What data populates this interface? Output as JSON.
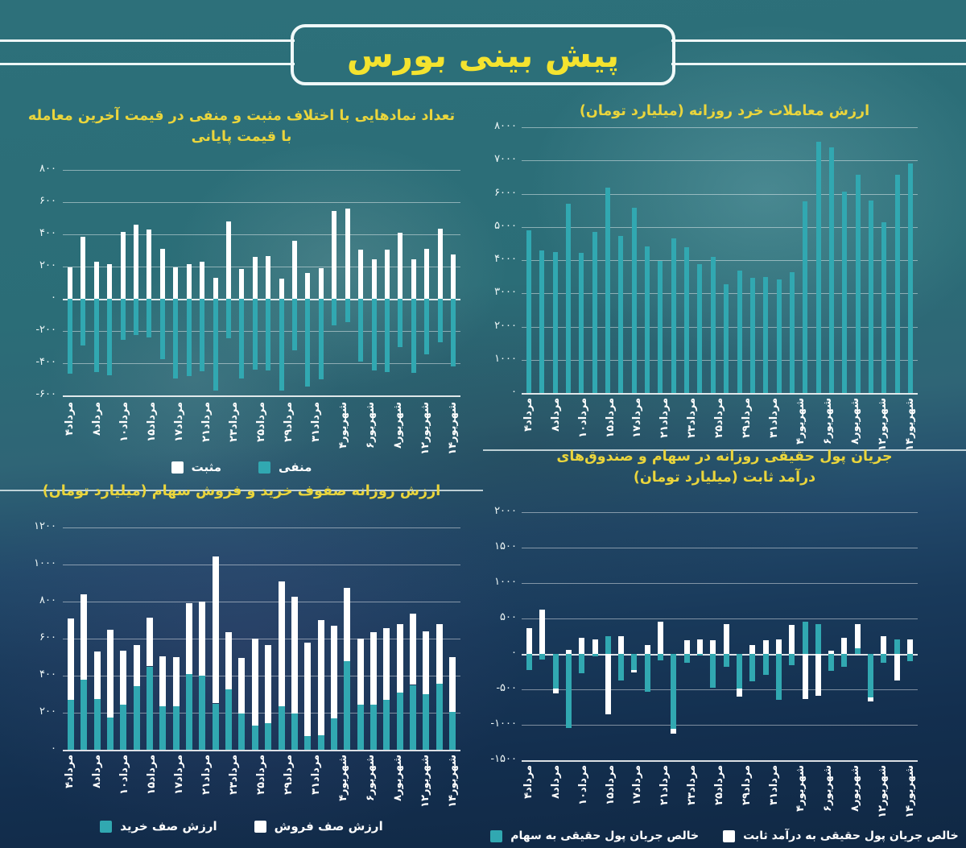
{
  "main_title": "پیش بینی بورس",
  "colors": {
    "teal": "#31a8b1",
    "white": "#ffffff",
    "title_yellow": "#ead53c",
    "main_title_yellow": "#f4e32f"
  },
  "chart_data": [
    {
      "id": "symbol-count-diff",
      "type": "bar",
      "title": "تعداد نمادهایی با اختلاف مثبت و منفی در قیمت آخرین معامله\nبا قیمت پایانی",
      "ylim": [
        -600,
        800
      ],
      "yticks": [
        "۸۰۰",
        "۶۰۰",
        "۴۰۰",
        "۲۰۰",
        "۰",
        "-۲۰۰",
        "-۴۰۰",
        "-۶۰۰"
      ],
      "barw": 6,
      "series": [
        {
          "name": "مثبت",
          "color": "#ffffff",
          "values": [
            195,
            385,
            230,
            215,
            415,
            460,
            430,
            310,
            195,
            215,
            230,
            130,
            480,
            185,
            260,
            265,
            125,
            360,
            160,
            190,
            545,
            560,
            305,
            245,
            305,
            410,
            245,
            310,
            435,
            275
          ]
        },
        {
          "name": "منفی",
          "color": "#31a8b1",
          "values": [
            -465,
            -290,
            -455,
            -475,
            -255,
            -225,
            -240,
            -375,
            -495,
            -480,
            -450,
            -570,
            -245,
            -495,
            -440,
            -445,
            -570,
            -320,
            -545,
            -500,
            -165,
            -145,
            -390,
            -445,
            -455,
            -300,
            -460,
            -345,
            -270,
            -420
          ]
        }
      ],
      "legend": [
        {
          "label": "مثبت",
          "color": "#ffffff"
        },
        {
          "label": "منفی",
          "color": "#31a8b1"
        }
      ],
      "xlabels": [
        "مرداد۴",
        "مرداد۸",
        "مرداد۱۰",
        "مرداد۱۵",
        "مرداد۱۷",
        "مرداد۲۱",
        "مرداد۲۳",
        "مرداد۲۵",
        "مرداد۲۹",
        "مرداد۳۱",
        "شهریور۴",
        "شهریور۶",
        "شهریور۸",
        "شهریور۱۲",
        "شهریور۱۴"
      ]
    },
    {
      "id": "retail-trade-value",
      "type": "bar",
      "title": "ارزش معاملات خرد روزانه (میلیارد تومان)",
      "ylim": [
        0,
        8000
      ],
      "yticks": [
        "۸۰۰۰",
        "۷۰۰۰",
        "۶۰۰۰",
        "۵۰۰۰",
        "۴۰۰۰",
        "۳۰۰۰",
        "۲۰۰۰",
        "۱۰۰۰",
        "۰"
      ],
      "barw": 6,
      "series": [
        {
          "name": "ارزش معاملات خرد روزانه",
          "color": "#31a8b1",
          "values": [
            4900,
            4290,
            4250,
            5690,
            4210,
            4860,
            6170,
            4730,
            5580,
            4410,
            3970,
            4650,
            4400,
            3890,
            4100,
            3280,
            3680,
            3460,
            3500,
            3420,
            3640,
            5760,
            7560,
            7400,
            6060,
            6580,
            5800,
            5140,
            6560,
            6900
          ]
        }
      ],
      "legend": [],
      "xlabels": [
        "مرداد۴",
        "مرداد۸",
        "مرداد۱۰",
        "مرداد۱۵",
        "مرداد۱۷",
        "مرداد۲۱",
        "مرداد۲۳",
        "مرداد۲۵",
        "مرداد۲۹",
        "مرداد۳۱",
        "شهریور۴",
        "شهریور۶",
        "شهریور۸",
        "شهریور۱۲",
        "شهریور۱۴"
      ]
    },
    {
      "id": "order-queues-value",
      "type": "bar-stacked",
      "title": "ارزش روزانه صفوف خرید و فروش سهام (میلیارد تومان)",
      "ylim": [
        0,
        1200
      ],
      "yticks": [
        "۱۲۰۰",
        "۱۰۰۰",
        "۸۰۰",
        "۶۰۰",
        "۴۰۰",
        "۲۰۰",
        "۰"
      ],
      "barw": 8,
      "series": [
        {
          "name": "ارزش صف خرید",
          "color": "#31a8b1",
          "values": [
            270,
            380,
            275,
            175,
            245,
            345,
            450,
            235,
            235,
            410,
            400,
            250,
            325,
            195,
            130,
            145,
            235,
            195,
            75,
            80,
            170,
            480,
            245,
            245,
            270,
            310,
            350,
            300,
            355,
            205
          ]
        },
        {
          "name": "ارزش صف فروش",
          "color": "#ffffff",
          "values": [
            440,
            460,
            255,
            475,
            290,
            220,
            265,
            270,
            265,
            380,
            400,
            795,
            310,
            300,
            470,
            420,
            675,
            630,
            505,
            620,
            500,
            395,
            355,
            390,
            385,
            370,
            385,
            340,
            325,
            295
          ]
        }
      ],
      "legend": [
        {
          "label": "ارزش صف خرید",
          "color": "#31a8b1"
        },
        {
          "label": "ارزش صف فروش",
          "color": "#ffffff"
        }
      ],
      "xlabels": [
        "مرداد۴",
        "مرداد۸",
        "مرداد۱۰",
        "مرداد۱۵",
        "مرداد۱۷",
        "مرداد۲۱",
        "مرداد۲۳",
        "مرداد۲۵",
        "مرداد۲۹",
        "مرداد۳۱",
        "شهریور۴",
        "شهریور۶",
        "شهریور۸",
        "شهریور۱۲",
        "شهریور۱۴"
      ]
    },
    {
      "id": "real-money-flow",
      "type": "bar",
      "title": "جریان پول حقیقی روزانه در سهام و صندوق‌های\nدرآمد ثابت (میلیارد تومان)",
      "ylim": [
        -1500,
        2000
      ],
      "yticks": [
        "۲۰۰۰",
        "۱۵۰۰",
        "۱۰۰۰",
        "۵۰۰",
        "۰",
        "-۵۰۰",
        "-۱۰۰۰",
        "-۱۵۰۰"
      ],
      "barw": 7,
      "series": [
        {
          "name": "خالص جریان پول حقیقی به سهام",
          "color": "#31a8b1",
          "values": [
            -225,
            -80,
            -490,
            -1050,
            -270,
            -30,
            245,
            -380,
            -230,
            -530,
            -90,
            -1060,
            -130,
            -25,
            -480,
            -180,
            -490,
            -390,
            -290,
            -650,
            -160,
            460,
            415,
            -235,
            -180,
            85,
            -610,
            -130,
            210,
            -105
          ]
        },
        {
          "name": "خالص جریان پول حقیقی به درآمد ثابت",
          "color": "#ffffff",
          "values": [
            360,
            625,
            -65,
            55,
            230,
            200,
            -850,
            250,
            -30,
            130,
            450,
            -70,
            190,
            200,
            190,
            420,
            -110,
            130,
            190,
            200,
            410,
            -635,
            -590,
            40,
            230,
            335,
            -60,
            250,
            -370,
            210
          ]
        }
      ],
      "legend": [
        {
          "label": "خالص جریان پول حقیقی به سهام",
          "color": "#31a8b1"
        },
        {
          "label": "خالص جریان پول حقیقی به درآمد ثابت",
          "color": "#ffffff"
        }
      ],
      "xlabels": [
        "مرداد۴",
        "مرداد۸",
        "مرداد۱۰",
        "مرداد۱۵",
        "مرداد۱۷",
        "مرداد۲۱",
        "مرداد۲۳",
        "مرداد۲۵",
        "مرداد۲۹",
        "مرداد۳۱",
        "شهریور۴",
        "شهریور۶",
        "شهریور۸",
        "شهریور۱۲",
        "شهریور۱۴"
      ]
    }
  ]
}
